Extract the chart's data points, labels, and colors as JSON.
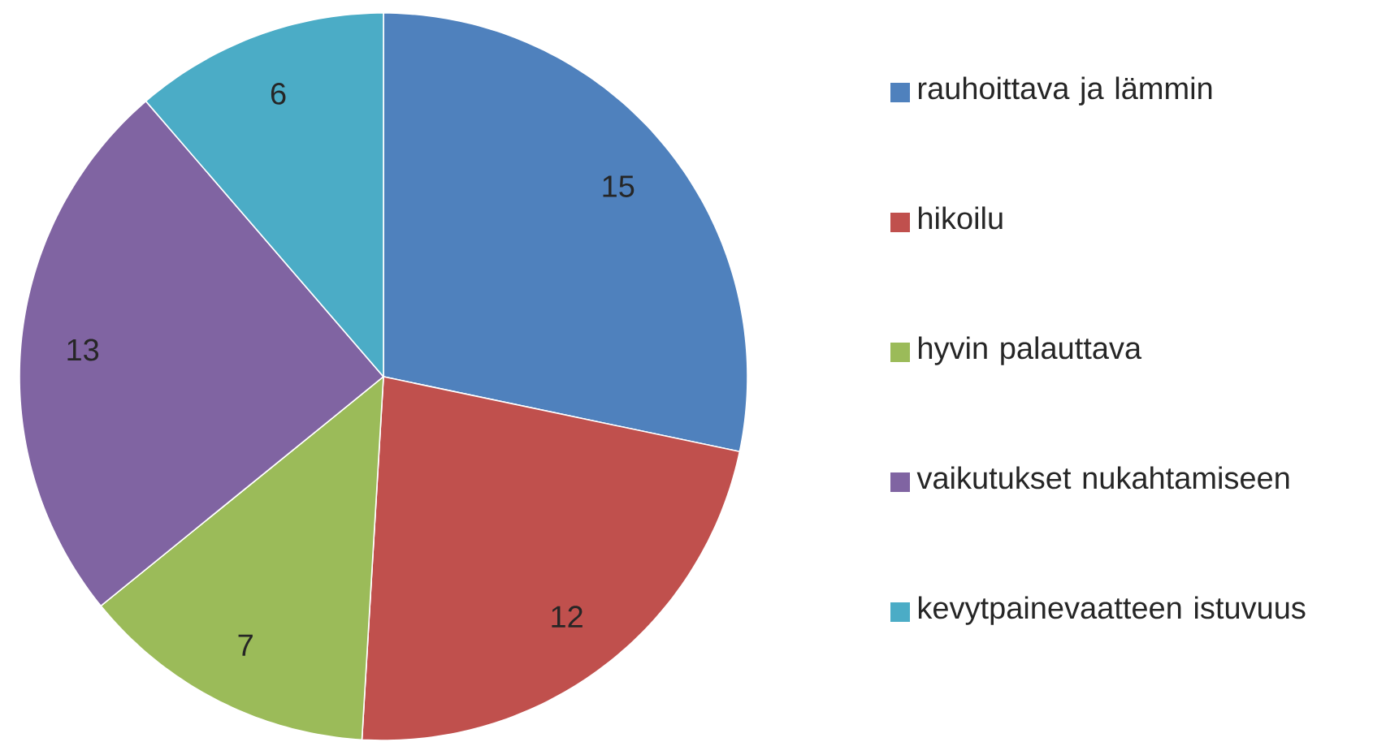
{
  "chart_data": {
    "type": "pie",
    "categories": [
      "rauhoittava ja lämmin",
      "hikoilu",
      "hyvin palauttava",
      "vaikutukset nukahtamiseen",
      "kevytpainevaatteen istuvuus"
    ],
    "values": [
      15,
      12,
      7,
      13,
      6
    ],
    "colors": [
      "#4f81bd",
      "#c0504d",
      "#9bbb59",
      "#8064a2",
      "#4bacc6"
    ],
    "data_labels": true,
    "legend": "right"
  }
}
